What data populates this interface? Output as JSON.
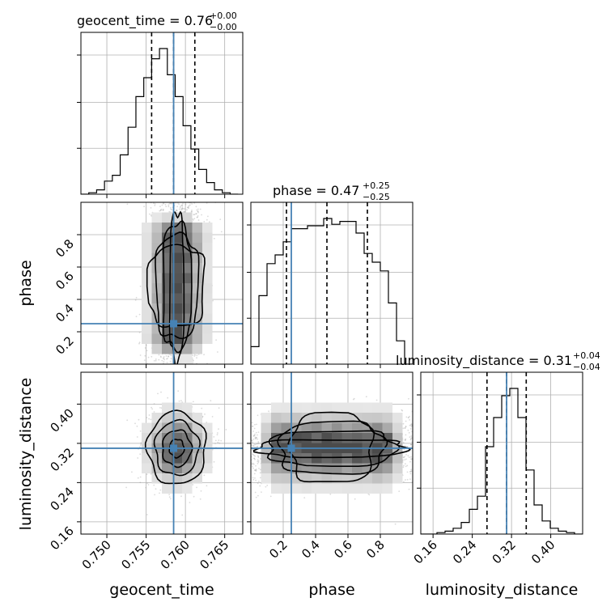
{
  "chart_data": {
    "type": "corner",
    "parameters": [
      "geocent_time",
      "phase",
      "luminosity_distance"
    ],
    "truths": {
      "geocent_time": 0.7585,
      "phase": 0.25,
      "luminosity_distance": 0.31
    },
    "titles": {
      "geocent_time": {
        "label": "geocent_time = 0.76",
        "sup": "+0.00",
        "sub": "−0.00"
      },
      "phase": {
        "label": "phase = 0.47",
        "sup": "+0.25",
        "sub": "−0.25"
      },
      "luminosity_distance": {
        "label": "luminosity_distance = 0.31",
        "sup": "+0.04",
        "sub": "−0.04"
      }
    },
    "axes": {
      "geocent_time": {
        "range": [
          0.7467,
          0.7673
        ],
        "ticks": [
          0.75,
          0.755,
          0.76,
          0.765
        ],
        "tick_labels": [
          "0.750",
          "0.755",
          "0.760",
          "0.765"
        ]
      },
      "phase": {
        "range": [
          0.0,
          1.0
        ],
        "ticks": [
          0.2,
          0.4,
          0.6,
          0.8
        ],
        "tick_labels": [
          "0.2",
          "0.4",
          "0.6",
          "0.8"
        ]
      },
      "luminosity_distance": {
        "range": [
          0.135,
          0.465
        ],
        "ticks": [
          0.16,
          0.24,
          0.32,
          0.4
        ],
        "tick_labels": [
          "0.16",
          "0.24",
          "0.32",
          "0.40"
        ]
      }
    },
    "histograms": {
      "geocent_time": {
        "bin_edges": [
          0.7467,
          0.7477,
          0.7487,
          0.7497,
          0.7507,
          0.7517,
          0.7527,
          0.7537,
          0.7547,
          0.7557,
          0.7567,
          0.7577,
          0.7587,
          0.7597,
          0.7607,
          0.7617,
          0.7627,
          0.7637,
          0.7647,
          0.7657,
          0.7667
        ],
        "heights": [
          0.0,
          0.01,
          0.03,
          0.09,
          0.13,
          0.27,
          0.46,
          0.67,
          0.8,
          0.93,
          1.0,
          0.82,
          0.67,
          0.47,
          0.31,
          0.17,
          0.08,
          0.03,
          0.01,
          0.0
        ],
        "quantiles": [
          0.7557,
          0.7585,
          0.7612
        ]
      },
      "phase": {
        "bin_edges": [
          0.0,
          0.05,
          0.1,
          0.15,
          0.2,
          0.25,
          0.3,
          0.35,
          0.4,
          0.45,
          0.5,
          0.55,
          0.6,
          0.65,
          0.7,
          0.75,
          0.8,
          0.85,
          0.9,
          0.95,
          1.0
        ],
        "heights": [
          0.12,
          0.47,
          0.69,
          0.75,
          0.84,
          0.93,
          0.93,
          0.95,
          0.95,
          1.0,
          0.96,
          0.98,
          0.98,
          0.9,
          0.76,
          0.7,
          0.64,
          0.42,
          0.16,
          0.0
        ],
        "quantiles": [
          0.22,
          0.47,
          0.72
        ]
      },
      "luminosity_distance": {
        "bin_edges": [
          0.135,
          0.1515,
          0.168,
          0.1845,
          0.201,
          0.2175,
          0.234,
          0.2505,
          0.267,
          0.2835,
          0.3,
          0.3165,
          0.333,
          0.3495,
          0.366,
          0.3825,
          0.399,
          0.4155,
          0.432,
          0.4485,
          0.465
        ],
        "heights": [
          0.0,
          0.0,
          0.01,
          0.02,
          0.04,
          0.08,
          0.17,
          0.26,
          0.6,
          0.8,
          0.95,
          1.0,
          0.8,
          0.44,
          0.2,
          0.09,
          0.04,
          0.02,
          0.01,
          0.0
        ],
        "quantiles": [
          0.27,
          0.31,
          0.35
        ]
      }
    },
    "density_2d": {
      "phase_vs_geocent_time": {
        "x": "geocent_time",
        "y": "phase",
        "center": [
          0.7589,
          0.48
        ],
        "spread": [
          0.0019,
          0.27
        ]
      },
      "luminosity_distance_vs_geocent_time": {
        "x": "geocent_time",
        "y": "luminosity_distance",
        "center": [
          0.7589,
          0.31
        ],
        "spread": [
          0.002,
          0.04
        ]
      },
      "luminosity_distance_vs_phase": {
        "x": "phase",
        "y": "luminosity_distance",
        "center": [
          0.5,
          0.31
        ],
        "spread": [
          0.34,
          0.038
        ]
      }
    },
    "contour_levels": [
      0.3,
      0.6,
      0.9,
      1.2
    ],
    "grid": true,
    "colors": {
      "truth": "#4682b4",
      "hist": "#000000",
      "quantile": "#000000",
      "scatter": "#999999",
      "grid": "#b0b0b0"
    }
  }
}
